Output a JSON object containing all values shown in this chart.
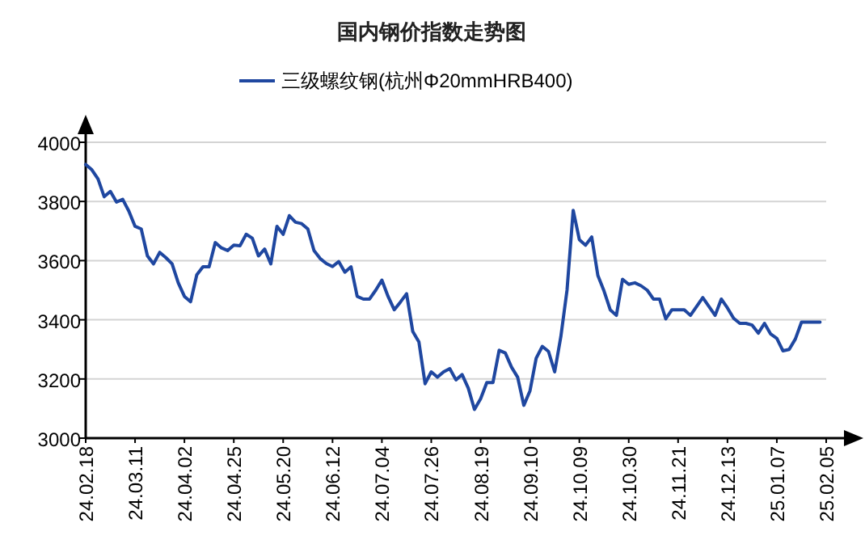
{
  "chart_data": {
    "type": "line",
    "title": "国内钢价指数走势图",
    "legend": "top",
    "categories": [
      "24.02.18",
      null,
      null,
      null,
      null,
      null,
      null,
      null,
      "24.03.11",
      null,
      null,
      null,
      null,
      null,
      null,
      null,
      "24.04.02",
      null,
      null,
      null,
      null,
      null,
      null,
      null,
      "24.04.25",
      null,
      null,
      null,
      null,
      null,
      null,
      null,
      "24.05.20",
      null,
      null,
      null,
      null,
      null,
      null,
      null,
      "24.06.12",
      null,
      null,
      null,
      null,
      null,
      null,
      null,
      "24.07.04",
      null,
      null,
      null,
      null,
      null,
      null,
      null,
      "24.07.26",
      null,
      null,
      null,
      null,
      null,
      null,
      null,
      "24.08.19",
      null,
      null,
      null,
      null,
      null,
      null,
      null,
      "24.09.10",
      null,
      null,
      null,
      null,
      null,
      null,
      null,
      "24.10.09",
      null,
      null,
      null,
      null,
      null,
      null,
      null,
      "24.10.30",
      null,
      null,
      null,
      null,
      null,
      null,
      null,
      "24.11.21",
      null,
      null,
      null,
      null,
      null,
      null,
      null,
      "24.12.13",
      null,
      null,
      null,
      null,
      null,
      null,
      null,
      "25.01.07",
      null,
      null,
      null,
      null,
      null,
      null,
      null,
      "25.02.05"
    ],
    "series": [
      {
        "name": "三级螺纹钢(杭州Φ20mmHRB400)",
        "color": "#1f47a0",
        "values": [
          3925,
          3907,
          3876,
          3816,
          3834,
          3798,
          3807,
          3767,
          3716,
          3707,
          3616,
          3589,
          3628,
          3610,
          3589,
          3525,
          3479,
          3461,
          3552,
          3579,
          3579,
          3661,
          3643,
          3634,
          3652,
          3650,
          3689,
          3676,
          3616,
          3639,
          3589,
          3716,
          3689,
          3752,
          3730,
          3725,
          3707,
          3634,
          3607,
          3590,
          3580,
          3597,
          3561,
          3579,
          3479,
          3470,
          3470,
          3500,
          3534,
          3479,
          3434,
          3460,
          3488,
          3361,
          3325,
          3184,
          3224,
          3206,
          3224,
          3235,
          3197,
          3215,
          3169,
          3097,
          3133,
          3188,
          3188,
          3297,
          3288,
          3240,
          3206,
          3111,
          3160,
          3270,
          3310,
          3293,
          3224,
          3343,
          3500,
          3770,
          3671,
          3652,
          3680,
          3550,
          3497,
          3434,
          3415,
          3537,
          3520,
          3525,
          3515,
          3500,
          3470,
          3470,
          3403,
          3434,
          3434,
          3434,
          3415,
          3445,
          3475,
          3445,
          3415,
          3470,
          3440,
          3405,
          3388,
          3388,
          3382,
          3355,
          3388,
          3352,
          3337,
          3295,
          3300,
          3335,
          3392,
          3392,
          3392,
          3392,
          null
        ]
      }
    ],
    "ylim": [
      3000,
      4000
    ],
    "yticks": [
      3000,
      3200,
      3400,
      3600,
      3800,
      4000
    ],
    "grid": "y",
    "marker": "none",
    "line_style": "solid"
  }
}
